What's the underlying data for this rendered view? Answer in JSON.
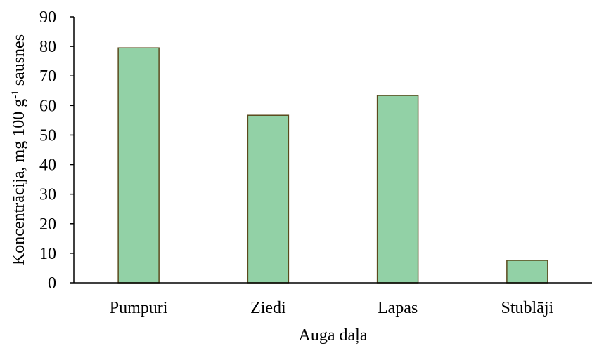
{
  "chart_data": {
    "type": "bar",
    "categories": [
      "Pumpuri",
      "Ziedi",
      "Lapas",
      "Stublāji"
    ],
    "values": [
      79.5,
      56.7,
      63.4,
      7.6
    ],
    "xlabel": "Auga daļa",
    "ylabel": {
      "prefix": "Koncentrācija, mg 100 g",
      "superscript": "-1",
      "suffix": " sausnes"
    },
    "ylim": [
      0,
      90
    ],
    "yticks": [
      0,
      10,
      20,
      30,
      40,
      50,
      60,
      70,
      80,
      90
    ],
    "grid": false,
    "legend": "none",
    "colors": {
      "bar_fill": "#92d1a6",
      "bar_stroke": "#5a4a1c",
      "axis": "#000000"
    }
  }
}
